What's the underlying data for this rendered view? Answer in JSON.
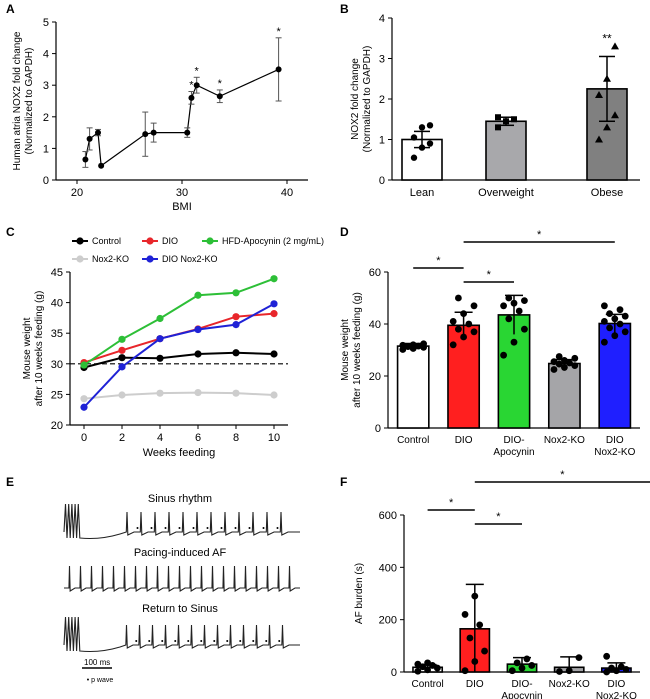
{
  "chart_data": [
    {
      "panel": "A",
      "type": "scatter",
      "xlabel": "BMI",
      "ylabel_lines": [
        "Human atria NOX2 fold change",
        "(Normalized to GAPDH)"
      ],
      "xticks": [
        20,
        30,
        40
      ],
      "yticks": [
        0,
        1,
        2,
        3,
        4,
        5
      ],
      "xlim": [
        18,
        42
      ],
      "ylim": [
        0,
        5
      ],
      "points": [
        {
          "x": 20.8,
          "y": 0.65,
          "err": 0.25,
          "star": false
        },
        {
          "x": 21.2,
          "y": 1.3,
          "err": 0.35,
          "star": false
        },
        {
          "x": 22.0,
          "y": 1.5,
          "err": 0.1,
          "star": false
        },
        {
          "x": 22.3,
          "y": 0.45,
          "err": 0.0,
          "star": false
        },
        {
          "x": 26.5,
          "y": 1.45,
          "err": 0.7,
          "star": false
        },
        {
          "x": 27.3,
          "y": 1.5,
          "err": 0.3,
          "star": false
        },
        {
          "x": 30.5,
          "y": 1.5,
          "err": 0.15,
          "star": false
        },
        {
          "x": 30.9,
          "y": 2.6,
          "err": 0.2,
          "star": true
        },
        {
          "x": 31.4,
          "y": 3.0,
          "err": 0.25,
          "star": true
        },
        {
          "x": 33.6,
          "y": 2.65,
          "err": 0.2,
          "star": true
        },
        {
          "x": 39.2,
          "y": 3.5,
          "err": 1.0,
          "star": true
        }
      ]
    },
    {
      "panel": "B",
      "type": "bar",
      "ylabel_lines": [
        "NOX2 fold change",
        "(Normalized to GAPDH)"
      ],
      "categories": [
        "Lean",
        "Overweight",
        "Obese"
      ],
      "values": [
        1.0,
        1.45,
        2.25
      ],
      "errors": [
        0.2,
        0.1,
        0.8
      ],
      "colors": [
        "#ffffff",
        "#a8a8ab",
        "#808080"
      ],
      "dots": [
        [
          0.55,
          0.8,
          0.9,
          1.05,
          1.3,
          1.35
        ],
        [
          1.3,
          1.45,
          1.5,
          1.55
        ],
        [
          1.0,
          1.3,
          1.6,
          2.1,
          2.5,
          3.3
        ]
      ],
      "annotation": "**",
      "yticks": [
        0,
        1,
        2,
        3,
        4
      ],
      "ylim": [
        0,
        4
      ]
    },
    {
      "panel": "C",
      "type": "line",
      "xlabel": "Weeks feeding",
      "ylabel_lines": [
        "Mouse weight",
        "after 10 weeks feeding (g)"
      ],
      "x": [
        0,
        2,
        4,
        6,
        8,
        10
      ],
      "xlim": [
        0,
        10
      ],
      "ylim": [
        20,
        45
      ],
      "yticks": [
        20,
        25,
        30,
        35,
        40,
        45
      ],
      "reference_line": 30,
      "series": [
        {
          "name": "Control",
          "color": "#000000",
          "values": [
            29.4,
            31.0,
            30.9,
            31.6,
            31.8,
            31.6
          ]
        },
        {
          "name": "DIO",
          "color": "#e8262b",
          "values": [
            30.2,
            32.2,
            34.1,
            35.7,
            37.7,
            38.2
          ]
        },
        {
          "name": "HFD-Apocynin (2 mg/mL)",
          "color": "#2dbf37",
          "values": [
            29.8,
            34.0,
            37.4,
            41.2,
            41.6,
            43.9
          ]
        },
        {
          "name": "Nox2-KO",
          "color": "#cdcdcd",
          "values": [
            24.3,
            24.9,
            25.2,
            25.3,
            25.2,
            24.9
          ]
        },
        {
          "name": "DIO Nox2-KO",
          "color": "#1f22d6",
          "values": [
            22.9,
            29.5,
            34.1,
            35.6,
            36.4,
            39.8
          ]
        }
      ]
    },
    {
      "panel": "D",
      "type": "bar",
      "ylabel_lines": [
        "Mouse weight",
        "after 10 weeks feeding (g)"
      ],
      "categories": [
        [
          "Control"
        ],
        [
          "DIO"
        ],
        [
          "DIO-",
          "Apocynin"
        ],
        [
          "Nox2-KO"
        ],
        [
          "DIO",
          "Nox2-KO"
        ]
      ],
      "values": [
        31.5,
        39.5,
        43.5,
        24.8,
        40.2
      ],
      "errors": [
        1.0,
        5.0,
        7.5,
        1.5,
        3.5
      ],
      "colors": [
        "#ffffff",
        "#ff1f1f",
        "#29d633",
        "#a5a5a8",
        "#1f1fff"
      ],
      "dots": [
        [
          30.2,
          30.6,
          31.0,
          31.3,
          31.5,
          31.8,
          32.0,
          32.4
        ],
        [
          32,
          35,
          37,
          38,
          40,
          41,
          44,
          47,
          50
        ],
        [
          28,
          33,
          38,
          42,
          45,
          47,
          48,
          49,
          50
        ],
        [
          22.5,
          23.3,
          24,
          24.6,
          25,
          25.5,
          26,
          26.8,
          27.5
        ],
        [
          33,
          35.5,
          37,
          38.5,
          40,
          41,
          42,
          43,
          44,
          45.5,
          47
        ]
      ],
      "significance": [
        [
          "Control",
          "DIO",
          "*"
        ],
        [
          "DIO",
          "DIO-Apocynin",
          "*"
        ],
        [
          "DIO",
          "DIO Nox2-KO",
          "*"
        ]
      ],
      "yticks": [
        0,
        20,
        40,
        60
      ],
      "ylim": [
        0,
        60
      ]
    },
    {
      "panel": "E",
      "type": "table",
      "traces": [
        "Sinus rhythm",
        "Pacing-induced AF",
        "Return to Sinus"
      ],
      "scale_bar": "100 ms",
      "legend_text": "• p wave"
    },
    {
      "panel": "F",
      "type": "bar",
      "ylabel": "AF burden (s)",
      "categories": [
        [
          "Control"
        ],
        [
          "DIO"
        ],
        [
          "DIO-",
          "Apocynin"
        ],
        [
          "Nox2-KO"
        ],
        [
          "DIO",
          "Nox2-KO"
        ]
      ],
      "values": [
        18,
        165,
        30,
        18,
        15
      ],
      "errors": [
        10,
        170,
        25,
        40,
        20
      ],
      "colors": [
        "#ffffff",
        "#ff1f1f",
        "#29d633",
        "#a5a5a8",
        "#1f1fff"
      ],
      "dots": [
        [
          3,
          8,
          15,
          20,
          25,
          30,
          35
        ],
        [
          5,
          40,
          80,
          130,
          180,
          220,
          290
        ],
        [
          5,
          15,
          25,
          35,
          50
        ],
        [
          2,
          5,
          55
        ],
        [
          0,
          5,
          10,
          15,
          20,
          60
        ]
      ],
      "significance": [
        [
          "Control",
          "DIO",
          "*"
        ],
        [
          "DIO",
          "DIO-Apocynin",
          "*"
        ],
        [
          "DIO",
          "DIO Nox2-KO",
          "*"
        ]
      ],
      "yticks": [
        0,
        200,
        400,
        600
      ],
      "ylim": [
        0,
        600
      ]
    }
  ]
}
